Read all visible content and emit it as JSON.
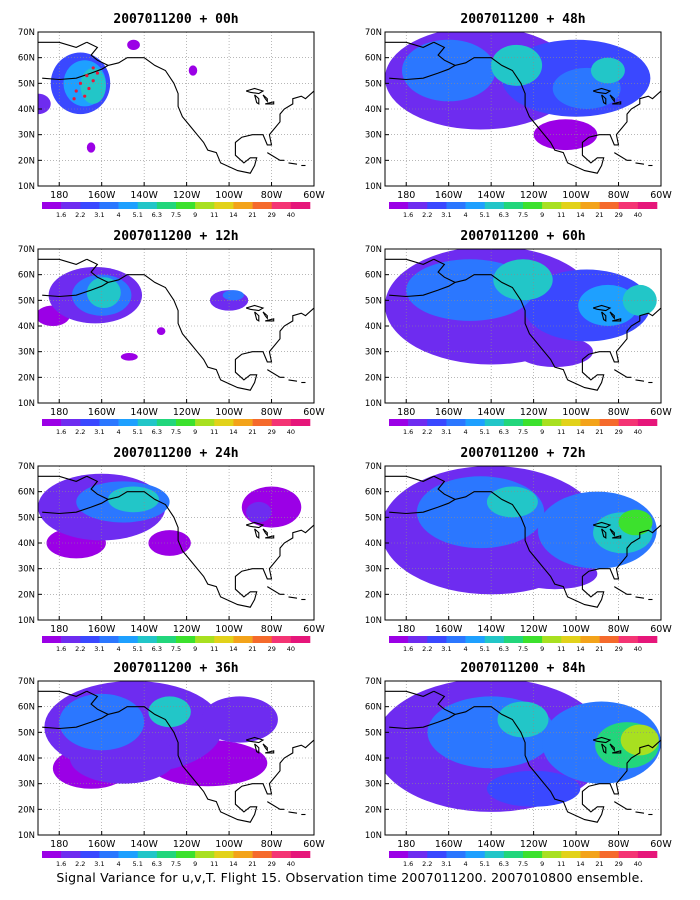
{
  "caption": "Signal Variance for u,v,T. Flight 15. Observation time 2007011200. 2007010800 ensemble.",
  "colorbar": {
    "labels": [
      "1.6",
      "2.2",
      "3.1",
      "4",
      "5.1",
      "6.3",
      "7.5",
      "9",
      "11",
      "14",
      "21",
      "29",
      "40"
    ],
    "colors": [
      "#9b00e6",
      "#6e2cf0",
      "#3a48ff",
      "#2b77ff",
      "#1ea0ff",
      "#22c6c8",
      "#22d67c",
      "#3ce12d",
      "#a8e020",
      "#e2d21a",
      "#f3a31a",
      "#f56a2c",
      "#f43474",
      "#e6167a"
    ]
  },
  "axes": {
    "x_ticks": [
      "180",
      "160W",
      "140W",
      "120W",
      "100W",
      "80W",
      "60W"
    ],
    "y_ticks": [
      "10N",
      "20N",
      "30N",
      "40N",
      "50N",
      "60N",
      "70N"
    ],
    "lon_range": [
      -190,
      -60
    ],
    "lat_range": [
      10,
      70
    ],
    "grid": "dotted"
  },
  "chart_data": [
    {
      "type": "heatmap",
      "title": "2007011200 + 00h",
      "forecast_hour": 0,
      "flight_track": true
    },
    {
      "type": "heatmap",
      "title": "2007011200 + 48h",
      "forecast_hour": 48,
      "flight_track": false
    },
    {
      "type": "heatmap",
      "title": "2007011200 + 12h",
      "forecast_hour": 12,
      "flight_track": false
    },
    {
      "type": "heatmap",
      "title": "2007011200 + 60h",
      "forecast_hour": 60,
      "flight_track": false
    },
    {
      "type": "heatmap",
      "title": "2007011200 + 24h",
      "forecast_hour": 24,
      "flight_track": false
    },
    {
      "type": "heatmap",
      "title": "2007011200 + 72h",
      "forecast_hour": 72,
      "flight_track": false
    },
    {
      "type": "heatmap",
      "title": "2007011200 + 36h",
      "forecast_hour": 36,
      "flight_track": false
    },
    {
      "type": "heatmap",
      "title": "2007011200 + 84h",
      "forecast_hour": 84,
      "flight_track": false
    }
  ]
}
